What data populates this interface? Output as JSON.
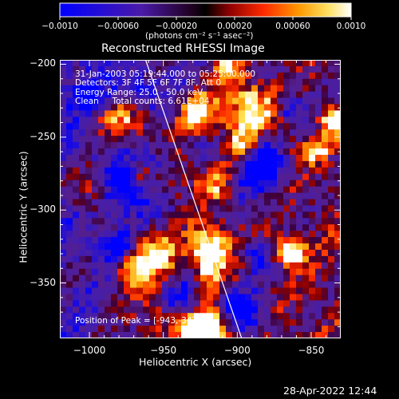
{
  "chart_data": {
    "type": "heatmap",
    "title": "Reconstructed RHESSI Image",
    "xlabel": "Heliocentric X (arcsec)",
    "ylabel": "Heliocentric Y (arcsec)",
    "xlim": [
      -1020,
      -830
    ],
    "ylim": [
      -388,
      -197
    ],
    "x_ticks": [
      -1000,
      -950,
      -900,
      -850
    ],
    "x_tick_labels": [
      "−1000",
      "−950",
      "−900",
      "−850"
    ],
    "y_ticks": [
      -200,
      -250,
      -300,
      -350
    ],
    "y_tick_labels": [
      "−200",
      "−250",
      "−300",
      "−350"
    ],
    "colorbar": {
      "range": [
        -0.001,
        0.001
      ],
      "ticks": [
        -0.001,
        -0.0006,
        -0.0002,
        0.0002,
        0.0006,
        0.001
      ],
      "tick_labels": [
        "−0.0010",
        "−0.00060",
        "−0.00020",
        "0.00020",
        "0.00060",
        "0.0010"
      ],
      "unit_label": "(photons cm⁻² s⁻¹ asec⁻²)",
      "colors": [
        "#0000ff",
        "#5a1ca0",
        "#000000",
        "#8b0000",
        "#ff3000",
        "#ffa000",
        "#ffffff"
      ]
    },
    "annotations": {
      "time_range": "31-Jan-2003 05:19:44.000 to 05:25:00.000",
      "detectors": "Detectors: 3F 4F 5F 6F 7F 8F, Att 0",
      "energy_range": "Energy Range: 25.0 - 50.0 keV",
      "clean_counts": "Clean     Total counts: 6.61E+04",
      "peak_position": "Position of Peak = [-943,-347]"
    },
    "limb_line": {
      "x": [
        -962,
        -897
      ],
      "y": [
        -197,
        -388
      ]
    },
    "peak": [
      -943,
      -347
    ]
  },
  "footer": {
    "date_stamp": "28-Apr-2022 12:44"
  }
}
